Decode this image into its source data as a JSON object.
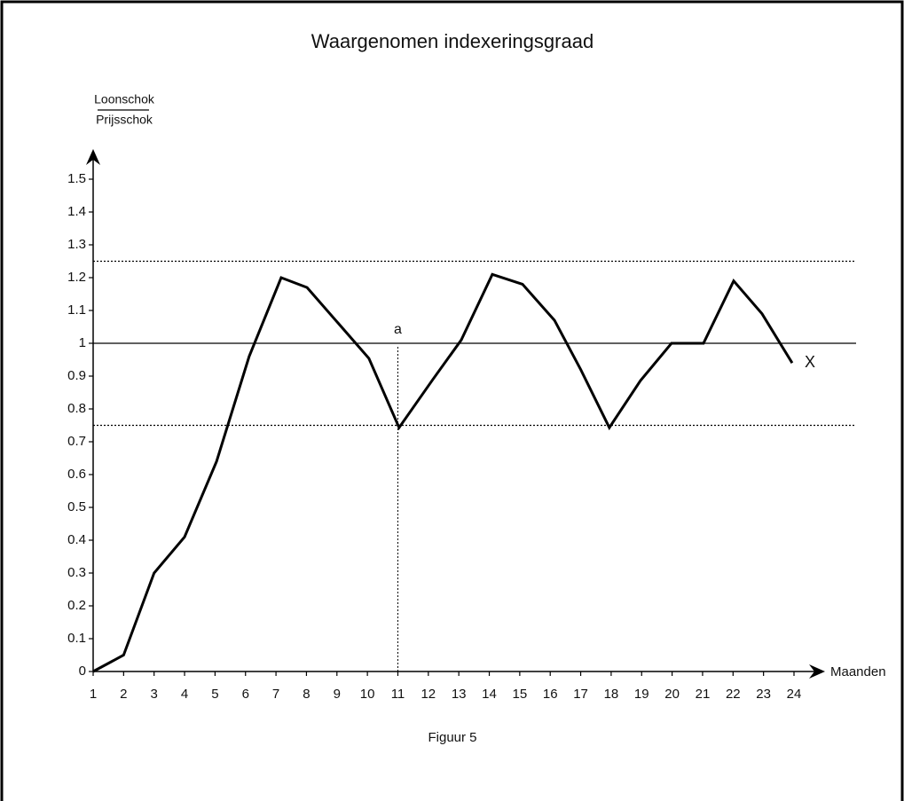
{
  "chart_data": {
    "type": "line",
    "title": "Waargenomen indexeringsgraad",
    "ylabel_numerator": "Loonschok",
    "ylabel_denominator": "Prijsschok",
    "xlabel": "Maanden",
    "caption": "Figuur 5",
    "x": [
      1,
      2,
      3,
      4,
      5.05,
      6.12,
      7.17,
      8.02,
      10.05,
      11.04,
      12.15,
      13.08,
      14.1,
      15.09,
      16.14,
      17,
      17.94,
      18.96,
      19.98,
      21.03,
      22.02,
      22.95,
      23.94
    ],
    "series": [
      {
        "name": "X",
        "color": "#000000",
        "values": [
          0,
          0.05,
          0.3,
          0.41,
          0.64,
          0.96,
          1.2,
          1.17,
          0.954,
          0.743,
          0.89,
          1.01,
          1.21,
          1.18,
          1.07,
          0.92,
          0.743,
          0.886,
          1,
          1,
          1.19,
          1.09,
          0.94
        ]
      }
    ],
    "xlim": [
      1,
      24
    ],
    "ylim": [
      0,
      1.5
    ],
    "xticks": [
      1,
      2,
      3,
      4,
      5,
      6,
      7,
      8,
      9,
      10,
      11,
      12,
      13,
      14,
      15,
      16,
      17,
      18,
      19,
      20,
      21,
      22,
      23,
      24
    ],
    "yticks": [
      0,
      0.1,
      0.2,
      0.3,
      0.4,
      0.5,
      0.6,
      0.7,
      0.8,
      0.9,
      1,
      1.1,
      1.2,
      1.3,
      1.4,
      1.5
    ],
    "hlines": [
      {
        "value": 1.25,
        "style": "dotted"
      },
      {
        "value": 1,
        "style": "solid"
      },
      {
        "value": 0.75,
        "style": "dotted"
      }
    ],
    "vline": {
      "value": 11,
      "label": "a"
    },
    "grid": false
  }
}
